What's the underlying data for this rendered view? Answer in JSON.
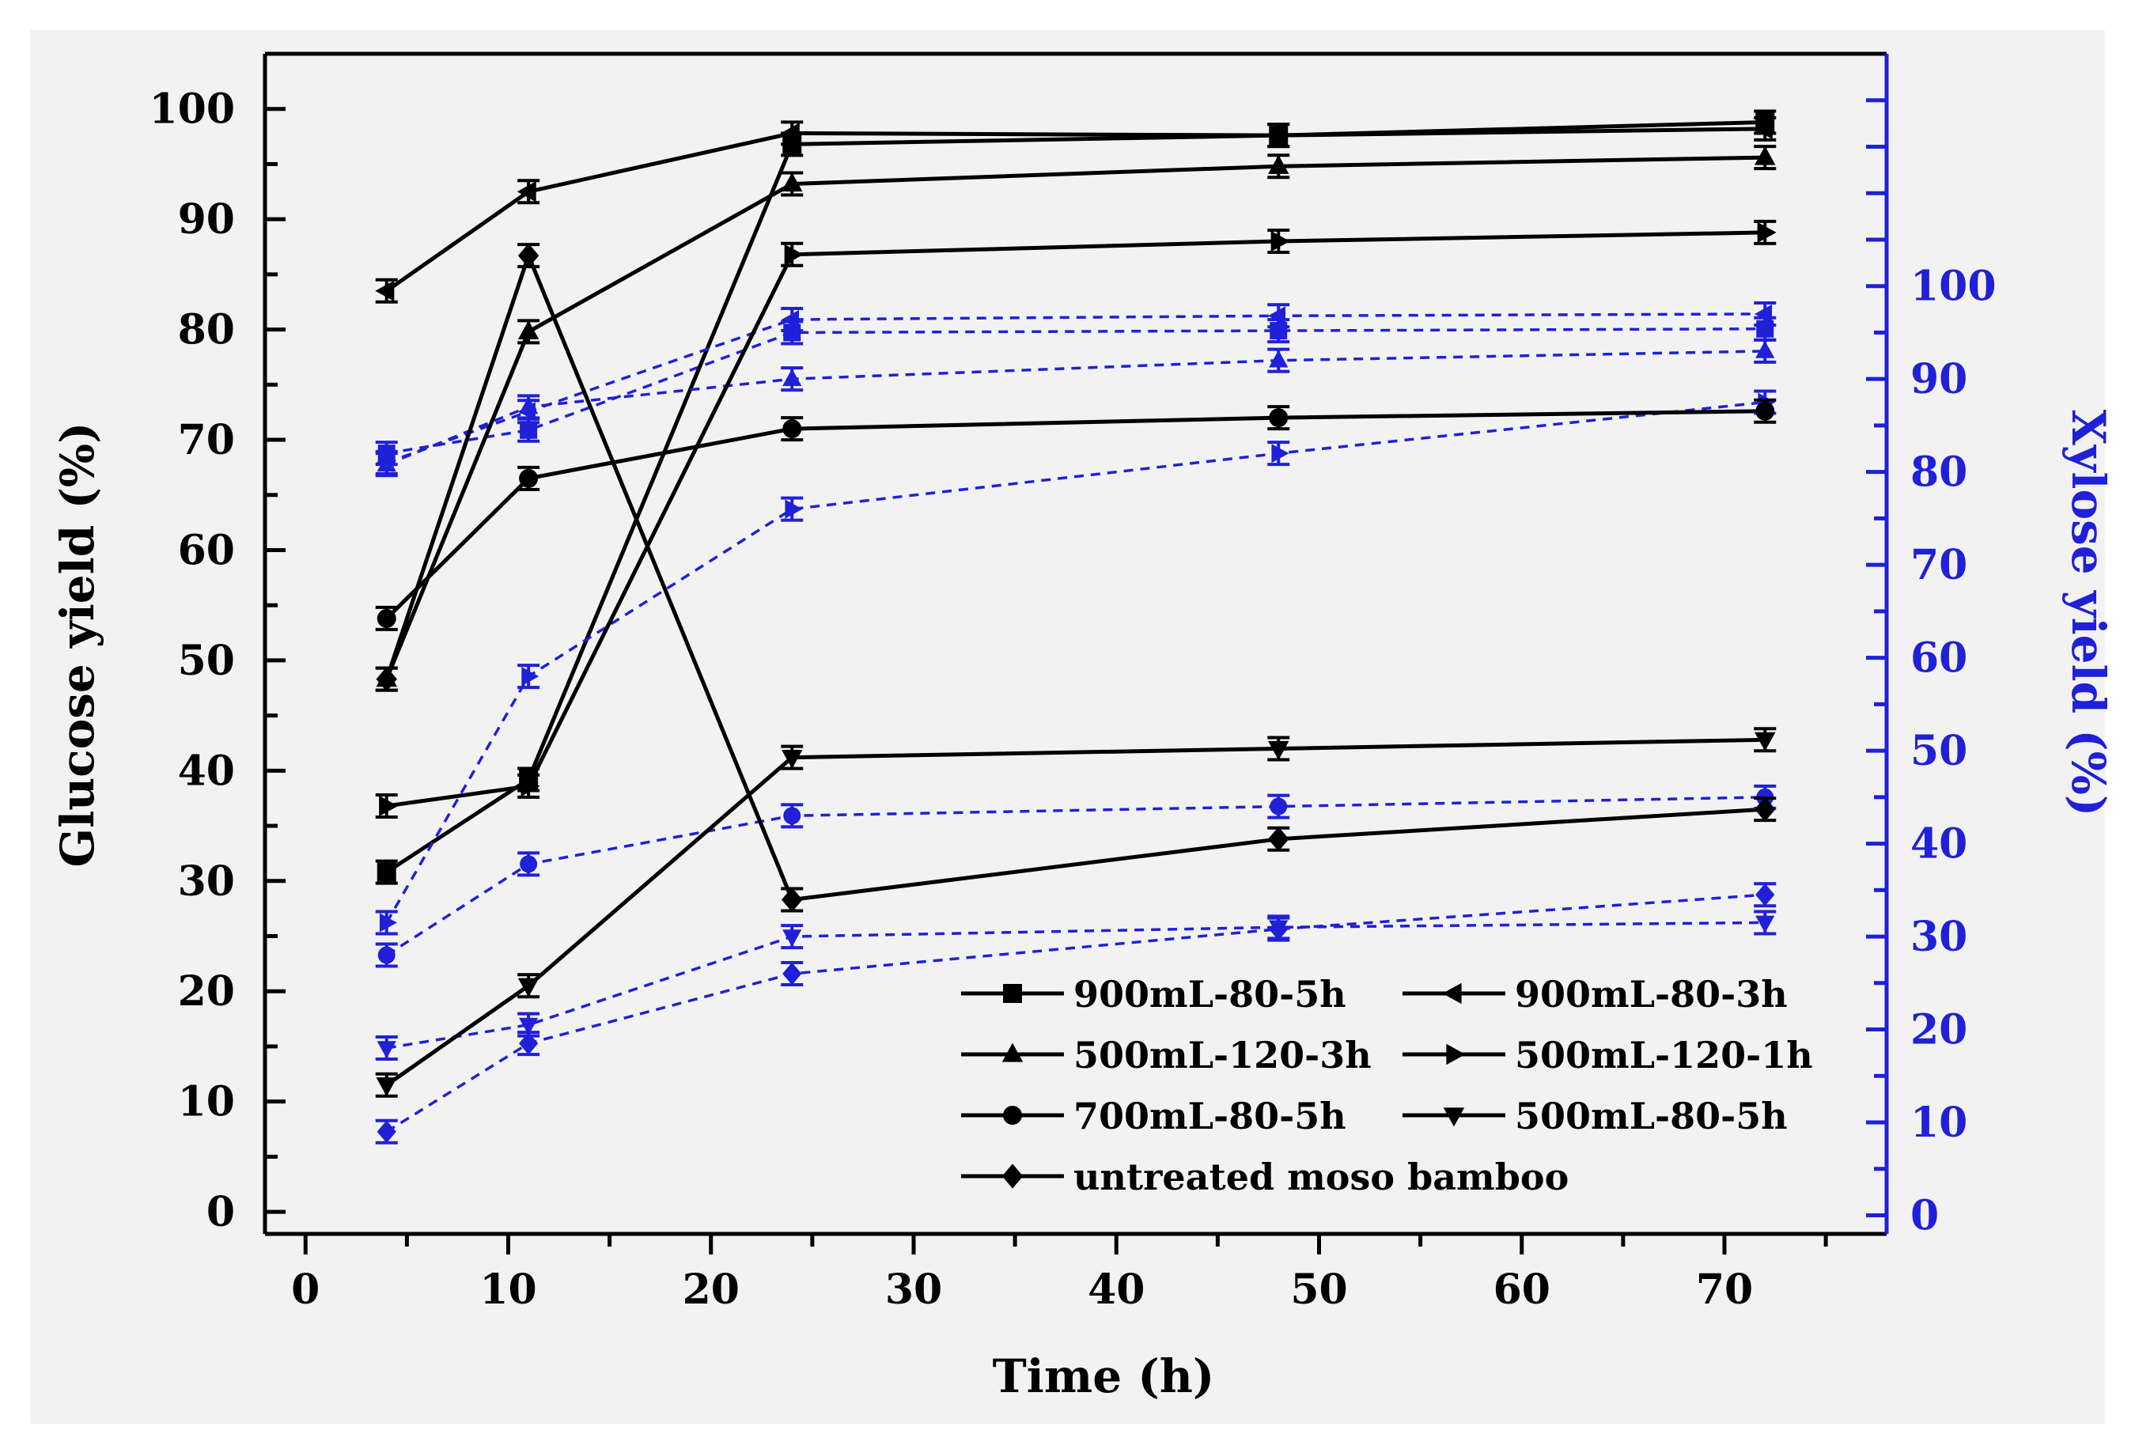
{
  "chart_data": {
    "type": "line",
    "title": "",
    "xlabel": "Time (h)",
    "ylabel_left": "Glucose yield (%)",
    "ylabel_right": "Xylose yield (%)",
    "xlim": [
      -2,
      78
    ],
    "ylim_left": [
      -2,
      105
    ],
    "ylim_right": [
      -2,
      125
    ],
    "x_ticks": [
      0,
      10,
      20,
      30,
      40,
      50,
      60,
      70
    ],
    "y_left_ticks": [
      0,
      10,
      20,
      30,
      40,
      50,
      60,
      70,
      80,
      90,
      100
    ],
    "y_right_ticks": [
      0,
      10,
      20,
      30,
      40,
      50,
      60,
      70,
      80,
      90,
      100
    ],
    "x": [
      4,
      11,
      24,
      48,
      72
    ],
    "grid": false,
    "legend_position": "bottom-right",
    "colors": {
      "glucose": "#000000",
      "xylose": "#2020d8"
    },
    "series": [
      {
        "name": "900mL-80-5h",
        "marker": "square",
        "glucose": [
          30.8,
          39.2,
          96.8,
          97.6,
          98.8
        ],
        "xylose": [
          82.0,
          84.5,
          95.0,
          95.2,
          95.4
        ]
      },
      {
        "name": "900mL-80-3h",
        "marker": "triangle-left",
        "glucose": [
          83.5,
          92.5,
          97.8,
          97.6,
          98.2
        ],
        "xylose": [
          81.0,
          86.5,
          96.4,
          96.8,
          97.0
        ]
      },
      {
        "name": "500mL-120-3h",
        "marker": "triangle-up",
        "glucose": [
          48.3,
          79.8,
          93.2,
          94.8,
          95.6
        ],
        "xylose": [
          80.8,
          87.0,
          90.0,
          92.0,
          93.0
        ]
      },
      {
        "name": "500mL-120-1h",
        "marker": "triangle-right",
        "glucose": [
          36.8,
          38.6,
          86.8,
          88.0,
          88.8
        ],
        "xylose": [
          31.5,
          58.0,
          76.0,
          82.0,
          87.5
        ]
      },
      {
        "name": "700mL-80-5h",
        "marker": "circle",
        "glucose": [
          53.8,
          66.5,
          71.0,
          72.0,
          72.6
        ],
        "xylose": [
          28.0,
          37.8,
          43.0,
          44.0,
          45.0
        ]
      },
      {
        "name": "500mL-80-5h",
        "marker": "triangle-down",
        "glucose": [
          11.5,
          20.5,
          41.2,
          42.0,
          42.8
        ],
        "xylose": [
          18.0,
          20.5,
          30.0,
          31.0,
          31.5
        ]
      },
      {
        "name": "untreated moso bamboo",
        "marker": "diamond",
        "glucose": [
          48.3,
          86.7,
          28.3,
          33.8,
          36.5
        ],
        "xylose": [
          9.0,
          18.5,
          26.0,
          30.8,
          34.5
        ]
      }
    ]
  }
}
